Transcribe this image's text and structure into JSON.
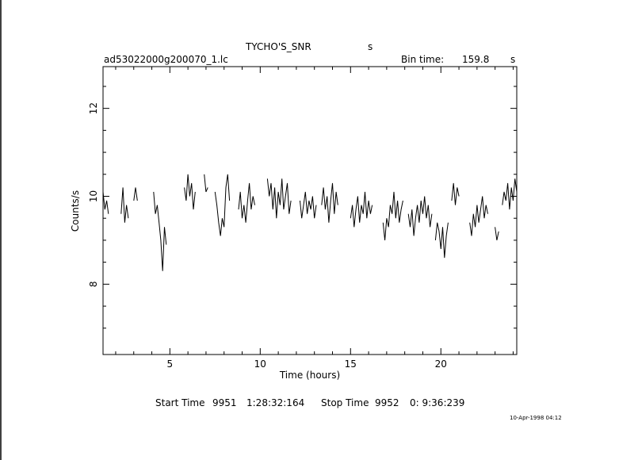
{
  "header": {
    "object_name": "TYCHO'S_SNR",
    "object_unit": "s",
    "file_name": "ad53022000g200070_1.lc",
    "bin_time_label": "Bin time:",
    "bin_time_value": "159.8",
    "bin_time_unit": "s"
  },
  "footer": {
    "start_label": "Start Time",
    "start_day": "9951",
    "start_time": "1:28:32:164",
    "stop_label": "Stop Time",
    "stop_day": "9952",
    "stop_time": "0: 9:36:239",
    "date_stamp": "10-Apr-1998 04:12"
  },
  "chart_data": {
    "type": "line",
    "title": "TYCHO'S_SNR",
    "xlabel": "Time (hours)",
    "ylabel": "Counts/s",
    "xlim": [
      1.3,
      24.2
    ],
    "ylim": [
      6.4,
      12.95
    ],
    "x_ticks": [
      5,
      10,
      15,
      20
    ],
    "y_ticks": [
      8,
      10,
      12
    ],
    "x_tick_labels": [
      "5",
      "10",
      "15",
      "20"
    ],
    "y_tick_labels": [
      "8",
      "10",
      "12"
    ],
    "grid": false,
    "series": [
      {
        "segments": [
          {
            "x": [
              1.3,
              1.4,
              1.5,
              1.6
            ],
            "y": [
              10.1,
              9.7,
              9.9,
              9.6
            ]
          },
          {
            "x": [
              2.3,
              2.4,
              2.5,
              2.6,
              2.7
            ],
            "y": [
              9.6,
              10.2,
              9.4,
              9.8,
              9.5
            ]
          },
          {
            "x": [
              3.0,
              3.1,
              3.2
            ],
            "y": [
              9.9,
              10.2,
              9.9
            ]
          },
          {
            "x": [
              4.1,
              4.2,
              4.3,
              4.4,
              4.5,
              4.6,
              4.7,
              4.8
            ],
            "y": [
              10.1,
              9.6,
              9.8,
              9.4,
              9.0,
              8.3,
              9.3,
              8.9
            ]
          },
          {
            "x": [
              5.8,
              5.9,
              6.0,
              6.1,
              6.2,
              6.3,
              6.4
            ],
            "y": [
              10.2,
              9.9,
              10.5,
              10.0,
              10.3,
              9.7,
              10.1
            ]
          },
          {
            "x": [
              6.9,
              7.0,
              7.1
            ],
            "y": [
              10.5,
              10.1,
              10.2
            ]
          },
          {
            "x": [
              7.5,
              7.6,
              7.7,
              7.8,
              7.9,
              8.0,
              8.1,
              8.2,
              8.3
            ],
            "y": [
              10.1,
              9.8,
              9.4,
              9.1,
              9.5,
              9.3,
              10.2,
              10.5,
              9.9
            ]
          },
          {
            "x": [
              8.8,
              8.9,
              9.0,
              9.1,
              9.2,
              9.3,
              9.4,
              9.5,
              9.6,
              9.7
            ],
            "y": [
              9.7,
              10.1,
              9.5,
              9.8,
              9.4,
              9.9,
              10.3,
              9.7,
              10.0,
              9.8
            ]
          },
          {
            "x": [
              10.4,
              10.5,
              10.6,
              10.7,
              10.8,
              10.9,
              11.0,
              11.1,
              11.2,
              11.3,
              11.4,
              11.5,
              11.6,
              11.7
            ],
            "y": [
              10.4,
              10.0,
              10.3,
              9.7,
              10.2,
              9.5,
              10.1,
              9.8,
              10.4,
              9.7,
              10.0,
              10.3,
              9.6,
              9.9
            ]
          },
          {
            "x": [
              12.2,
              12.3,
              12.4,
              12.5,
              12.6,
              12.7,
              12.8,
              12.9,
              13.0,
              13.1
            ],
            "y": [
              9.9,
              9.5,
              9.8,
              10.1,
              9.6,
              9.9,
              9.7,
              10.0,
              9.5,
              9.8
            ]
          },
          {
            "x": [
              13.4,
              13.5,
              13.6,
              13.7,
              13.8,
              13.9,
              14.0,
              14.1,
              14.2,
              14.3
            ],
            "y": [
              9.8,
              10.2,
              9.7,
              10.0,
              9.4,
              9.9,
              10.3,
              9.6,
              10.1,
              9.8
            ]
          },
          {
            "x": [
              15.0,
              15.1,
              15.2,
              15.3,
              15.4,
              15.5,
              15.6,
              15.7,
              15.8,
              15.9,
              16.0,
              16.1,
              16.2
            ],
            "y": [
              9.5,
              9.8,
              9.3,
              9.7,
              10.0,
              9.4,
              9.8,
              9.6,
              10.1,
              9.5,
              9.9,
              9.6,
              9.8
            ]
          },
          {
            "x": [
              16.8,
              16.9,
              17.0,
              17.1,
              17.2,
              17.3,
              17.4,
              17.5,
              17.6,
              17.7,
              17.8,
              17.9
            ],
            "y": [
              9.4,
              9.0,
              9.5,
              9.3,
              9.8,
              9.6,
              10.1,
              9.5,
              9.9,
              9.4,
              9.7,
              9.9
            ]
          },
          {
            "x": [
              18.2,
              18.3,
              18.4,
              18.5,
              18.6,
              18.7,
              18.8,
              18.9,
              19.0,
              19.1,
              19.2,
              19.3,
              19.4,
              19.5
            ],
            "y": [
              9.6,
              9.3,
              9.7,
              9.1,
              9.5,
              9.8,
              9.4,
              9.9,
              9.6,
              10.0,
              9.5,
              9.8,
              9.3,
              9.6
            ]
          },
          {
            "x": [
              19.7,
              19.8,
              19.9,
              20.0,
              20.1,
              20.2,
              20.3,
              20.4
            ],
            "y": [
              9.0,
              9.4,
              9.2,
              8.8,
              9.3,
              8.6,
              9.1,
              9.4
            ]
          },
          {
            "x": [
              20.6,
              20.7,
              20.8,
              20.9,
              21.0
            ],
            "y": [
              9.9,
              10.3,
              9.8,
              10.2,
              10.0
            ]
          },
          {
            "x": [
              21.6,
              21.7,
              21.8,
              21.9,
              22.0,
              22.1,
              22.2,
              22.3,
              22.4,
              22.5,
              22.6
            ],
            "y": [
              9.4,
              9.1,
              9.6,
              9.3,
              9.8,
              9.4,
              9.7,
              10.0,
              9.5,
              9.8,
              9.6
            ]
          },
          {
            "x": [
              23.0,
              23.1,
              23.2
            ],
            "y": [
              9.3,
              9.0,
              9.2
            ]
          },
          {
            "x": [
              23.4,
              23.5,
              23.6,
              23.7,
              23.8,
              23.9,
              24.0,
              24.1,
              24.2
            ],
            "y": [
              9.8,
              10.1,
              9.9,
              10.3,
              9.7,
              10.2,
              9.9,
              10.4,
              10.1
            ]
          }
        ]
      }
    ]
  }
}
